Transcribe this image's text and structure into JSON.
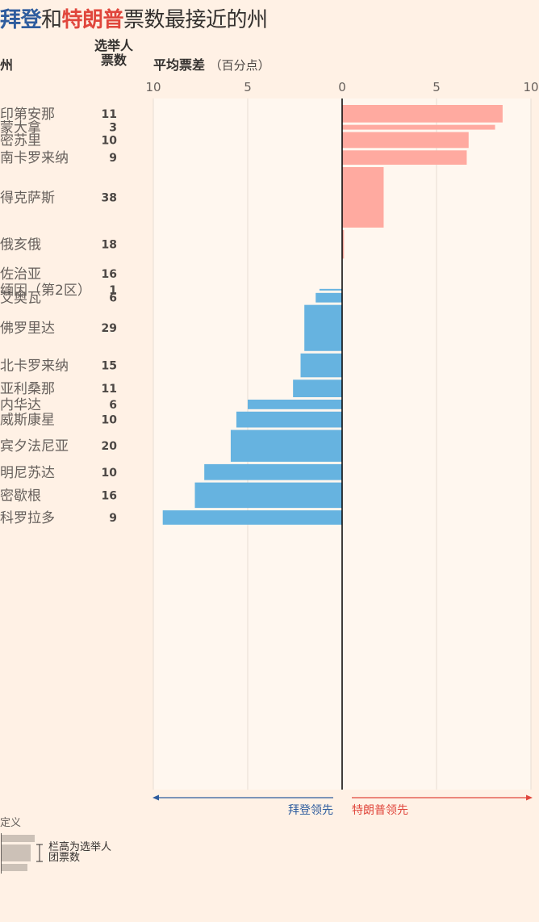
{
  "title": {
    "biden": "拜登",
    "and": "和",
    "trump": "特朗普",
    "rest": "票数最接近的州"
  },
  "headers": {
    "state": "州",
    "ev_line1": "选举人",
    "ev_line2": "票数",
    "margin": "平均票差",
    "margin_unit": "（百分点）"
  },
  "leads": {
    "biden": "拜登领先",
    "trump": "特朗普领先"
  },
  "legend": {
    "title": "定义",
    "text": "栏高为选举人团票数"
  },
  "colors": {
    "biden": "#66b3e0",
    "trump": "#ffaaa0",
    "biden_text": "#2e5c9e",
    "trump_text": "#e0463c",
    "background": "#fff1e5",
    "plot_background": "#fff7ef"
  },
  "chart_data": {
    "type": "bar",
    "orientation": "horizontal",
    "xlim": [
      -10,
      10
    ],
    "x_ticks": [
      -10,
      -5,
      0,
      5,
      10
    ],
    "x_tick_labels": [
      "10",
      "5",
      "0",
      "5",
      "10"
    ],
    "bar_height_encodes": "electoral votes",
    "grid": true,
    "states": [
      {
        "name": "印第安那",
        "ev": "11",
        "margin": 8.5,
        "leader": "trump"
      },
      {
        "name": "蒙大拿",
        "ev": "3",
        "margin": 8.1,
        "leader": "trump"
      },
      {
        "name": "密苏里",
        "ev": "10",
        "margin": 6.7,
        "leader": "trump"
      },
      {
        "name": "南卡罗来纳",
        "ev": "9",
        "margin": 6.6,
        "leader": "trump"
      },
      {
        "name": "得克萨斯",
        "ev": "38",
        "margin": 2.2,
        "leader": "trump"
      },
      {
        "name": "俄亥俄",
        "ev": "18",
        "margin": 0.1,
        "leader": "trump"
      },
      {
        "name": "佐治亚",
        "ev": "16",
        "margin": 0.0,
        "leader": "trump"
      },
      {
        "name": "缅因（第2区）",
        "ev": "1",
        "margin": -1.2,
        "leader": "biden"
      },
      {
        "name": "艾奥瓦",
        "ev": "6",
        "margin": -1.4,
        "leader": "biden"
      },
      {
        "name": "佛罗里达",
        "ev": "29",
        "margin": -2.0,
        "leader": "biden"
      },
      {
        "name": "北卡罗来纳",
        "ev": "15",
        "margin": -2.2,
        "leader": "biden"
      },
      {
        "name": "亚利桑那",
        "ev": "11",
        "margin": -2.6,
        "leader": "biden"
      },
      {
        "name": "内华达",
        "ev": "6",
        "margin": -5.0,
        "leader": "biden"
      },
      {
        "name": "威斯康星",
        "ev": "10",
        "margin": -5.6,
        "leader": "biden"
      },
      {
        "name": "宾夕法尼亚",
        "ev": "20",
        "margin": -5.9,
        "leader": "biden"
      },
      {
        "name": "明尼苏达",
        "ev": "10",
        "margin": -7.3,
        "leader": "biden"
      },
      {
        "name": "密歇根",
        "ev": "16",
        "margin": -7.8,
        "leader": "biden"
      },
      {
        "name": "科罗拉多",
        "ev": "9",
        "margin": -9.5,
        "leader": "biden"
      }
    ]
  }
}
